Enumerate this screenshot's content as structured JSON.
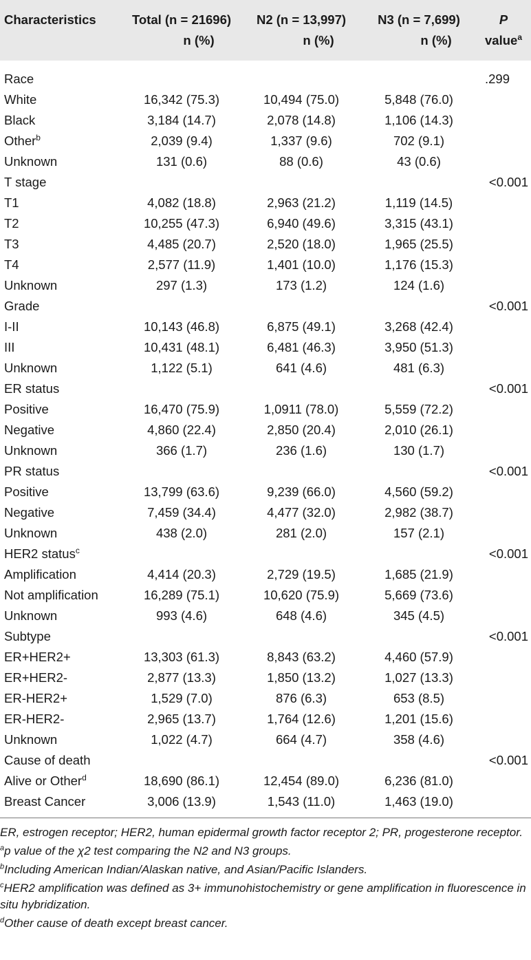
{
  "header": {
    "characteristics": "Characteristics",
    "total_line1": "Total (n = 21696)",
    "total_line2": "n (%)",
    "n2_line1": "N2 (n = 13,997)",
    "n2_line2": "n (%)",
    "n3_line1": "N3 (n = 7,699)",
    "n3_line2": "n (%)",
    "p_line1": "P",
    "p_line2": "value",
    "p_sup": "a"
  },
  "rows": [
    {
      "label": "Race",
      "sup": "",
      "total": "",
      "n2": "",
      "n3": "",
      "p": ".299"
    },
    {
      "label": "White",
      "sup": "",
      "total": "16,342 (75.3)",
      "n2": "10,494 (75.0)",
      "n3": "5,848 (76.0)",
      "p": ""
    },
    {
      "label": "Black",
      "sup": "",
      "total": "3,184 (14.7)",
      "n2": "2,078 (14.8)",
      "n3": "1,106 (14.3)",
      "p": ""
    },
    {
      "label": "Other",
      "sup": "b",
      "total": "2,039 (9.4)",
      "n2": "1,337 (9.6)",
      "n3": "702 (9.1)",
      "p": ""
    },
    {
      "label": "Unknown",
      "sup": "",
      "total": "131 (0.6)",
      "n2": "88 (0.6)",
      "n3": "43 (0.6)",
      "p": ""
    },
    {
      "label": "T stage",
      "sup": "",
      "total": "",
      "n2": "",
      "n3": "",
      "p": "<0.001"
    },
    {
      "label": "T1",
      "sup": "",
      "total": "4,082 (18.8)",
      "n2": "2,963 (21.2)",
      "n3": "1,119 (14.5)",
      "p": ""
    },
    {
      "label": "T2",
      "sup": "",
      "total": "10,255 (47.3)",
      "n2": "6,940 (49.6)",
      "n3": "3,315 (43.1)",
      "p": ""
    },
    {
      "label": "T3",
      "sup": "",
      "total": "4,485 (20.7)",
      "n2": "2,520 (18.0)",
      "n3": "1,965 (25.5)",
      "p": ""
    },
    {
      "label": "T4",
      "sup": "",
      "total": "2,577 (11.9)",
      "n2": "1,401 (10.0)",
      "n3": "1,176 (15.3)",
      "p": ""
    },
    {
      "label": "Unknown",
      "sup": "",
      "total": "297 (1.3)",
      "n2": "173 (1.2)",
      "n3": "124 (1.6)",
      "p": ""
    },
    {
      "label": "Grade",
      "sup": "",
      "total": "",
      "n2": "",
      "n3": "",
      "p": "<0.001"
    },
    {
      "label": "I-II",
      "sup": "",
      "total": "10,143 (46.8)",
      "n2": "6,875 (49.1)",
      "n3": "3,268 (42.4)",
      "p": ""
    },
    {
      "label": "III",
      "sup": "",
      "total": "10,431 (48.1)",
      "n2": "6,481 (46.3)",
      "n3": "3,950 (51.3)",
      "p": ""
    },
    {
      "label": "Unknown",
      "sup": "",
      "total": "1,122 (5.1)",
      "n2": "641 (4.6)",
      "n3": "481 (6.3)",
      "p": ""
    },
    {
      "label": "ER status",
      "sup": "",
      "total": "",
      "n2": "",
      "n3": "",
      "p": "<0.001"
    },
    {
      "label": "Positive",
      "sup": "",
      "total": "16,470 (75.9)",
      "n2": "1,0911 (78.0)",
      "n3": "5,559 (72.2)",
      "p": ""
    },
    {
      "label": "Negative",
      "sup": "",
      "total": "4,860 (22.4)",
      "n2": "2,850 (20.4)",
      "n3": "2,010 (26.1)",
      "p": ""
    },
    {
      "label": "Unknown",
      "sup": "",
      "total": "366 (1.7)",
      "n2": "236 (1.6)",
      "n3": "130 (1.7)",
      "p": ""
    },
    {
      "label": "PR status",
      "sup": "",
      "total": "",
      "n2": "",
      "n3": "",
      "p": "<0.001"
    },
    {
      "label": "Positive",
      "sup": "",
      "total": "13,799 (63.6)",
      "n2": "9,239 (66.0)",
      "n3": "4,560 (59.2)",
      "p": ""
    },
    {
      "label": "Negative",
      "sup": "",
      "total": "7,459 (34.4)",
      "n2": "4,477 (32.0)",
      "n3": "2,982 (38.7)",
      "p": ""
    },
    {
      "label": "Unknown",
      "sup": "",
      "total": "438 (2.0)",
      "n2": "281 (2.0)",
      "n3": "157 (2.1)",
      "p": ""
    },
    {
      "label": "HER2 status",
      "sup": "c",
      "total": "",
      "n2": "",
      "n3": "",
      "p": "<0.001"
    },
    {
      "label": "Amplification",
      "sup": "",
      "total": "4,414 (20.3)",
      "n2": "2,729 (19.5)",
      "n3": "1,685 (21.9)",
      "p": ""
    },
    {
      "label": "Not amplification",
      "sup": "",
      "total": "16,289 (75.1)",
      "n2": "10,620 (75.9)",
      "n3": "5,669 (73.6)",
      "p": ""
    },
    {
      "label": "Unknown",
      "sup": "",
      "total": "993 (4.6)",
      "n2": "648 (4.6)",
      "n3": "345 (4.5)",
      "p": ""
    },
    {
      "label": "Subtype",
      "sup": "",
      "total": "",
      "n2": "",
      "n3": "",
      "p": "<0.001"
    },
    {
      "label": "ER+HER2+",
      "sup": "",
      "total": "13,303 (61.3)",
      "n2": "8,843 (63.2)",
      "n3": "4,460 (57.9)",
      "p": ""
    },
    {
      "label": "ER+HER2-",
      "sup": "",
      "total": "2,877 (13.3)",
      "n2": "1,850 (13.2)",
      "n3": "1,027 (13.3)",
      "p": ""
    },
    {
      "label": "ER-HER2+",
      "sup": "",
      "total": "1,529 (7.0)",
      "n2": "876 (6.3)",
      "n3": "653 (8.5)",
      "p": ""
    },
    {
      "label": "ER-HER2-",
      "sup": "",
      "total": "2,965 (13.7)",
      "n2": "1,764 (12.6)",
      "n3": "1,201 (15.6)",
      "p": ""
    },
    {
      "label": "Unknown",
      "sup": "",
      "total": "1,022 (4.7)",
      "n2": "664 (4.7)",
      "n3": "358 (4.6)",
      "p": ""
    },
    {
      "label": "Cause of death",
      "sup": "",
      "total": "",
      "n2": "",
      "n3": "",
      "p": "<0.001"
    },
    {
      "label": "Alive or Other",
      "sup": "d",
      "total": "18,690 (86.1)",
      "n2": "12,454 (89.0)",
      "n3": "6,236 (81.0)",
      "p": ""
    },
    {
      "label": "Breast Cancer",
      "sup": "",
      "total": "3,006 (13.9)",
      "n2": "1,543 (11.0)",
      "n3": "1,463 (19.0)",
      "p": ""
    }
  ],
  "notes": {
    "abbrev": "ER, estrogen receptor; HER2, human epidermal growth factor receptor 2; PR, progesterone receptor.",
    "a_sup": "a",
    "a_text": "p value of the χ2 test comparing the N2 and N3 groups.",
    "b_sup": "b",
    "b_text": "Including American Indian/Alaskan native, and Asian/Pacific Islanders.",
    "c_sup": "c",
    "c_text": "HER2 amplification was defined as 3+ immunohistochemistry or gene amplification in fluorescence in situ hybridization.",
    "d_sup": "d",
    "d_text": "Other cause of death except breast cancer."
  }
}
